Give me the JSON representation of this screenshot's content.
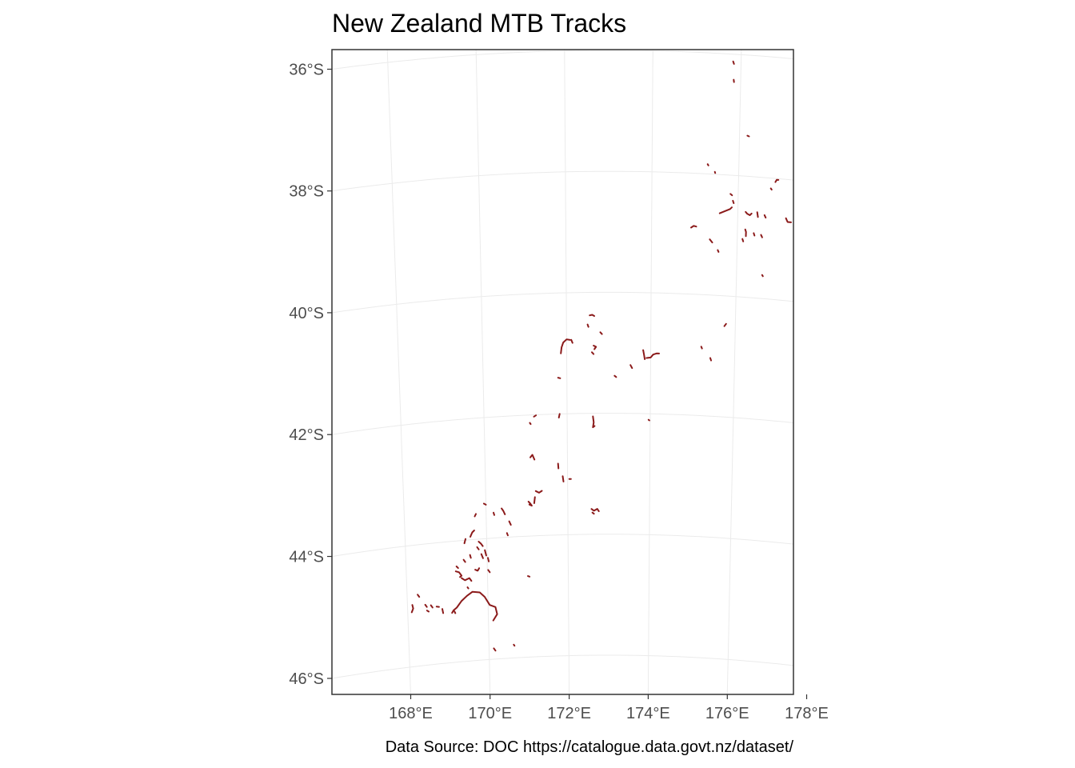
{
  "title": "New Zealand MTB Tracks",
  "caption": "Data Source: DOC https://catalogue.data.govt.nz/dataset/",
  "colors": {
    "track": "#8b1a1a",
    "grid": "#ebebeb",
    "panel_border": "#333333",
    "tick_text": "#4d4d4d"
  },
  "chart_data": {
    "type": "map",
    "projection": "lambert-conformal (graticule slightly curved)",
    "grid": true,
    "lon_range": [
      167.6,
      178.6
    ],
    "lat_range": [
      -46.3,
      -35.6
    ],
    "lon_ticks": [
      168,
      170,
      172,
      174,
      176,
      178
    ],
    "lat_ticks": [
      -36,
      -38,
      -40,
      -42,
      -44,
      -46
    ],
    "lon_tick_labels": [
      "168°E",
      "170°E",
      "172°E",
      "174°E",
      "176°E",
      "178°E"
    ],
    "lat_tick_labels": [
      "36°S",
      "38°S",
      "40°S",
      "42°S",
      "44°S",
      "46°S"
    ],
    "tracks": [
      [
        [
          175.82,
          -36.12
        ],
        [
          175.84,
          -36.16
        ]
      ],
      [
        [
          175.84,
          -36.42
        ],
        [
          175.85,
          -36.46
        ]
      ],
      [
        [
          176.18,
          -37.33
        ],
        [
          176.22,
          -37.34
        ]
      ],
      [
        [
          175.28,
          -37.84
        ],
        [
          175.3,
          -37.86
        ]
      ],
      [
        [
          175.45,
          -37.96
        ],
        [
          175.46,
          -37.98
        ]
      ],
      [
        [
          176.85,
          -38.06
        ],
        [
          176.88,
          -38.02
        ],
        [
          176.92,
          -38.02
        ]
      ],
      [
        [
          176.75,
          -38.17
        ],
        [
          176.77,
          -38.19
        ]
      ],
      [
        [
          177.98,
          -38.13
        ],
        [
          178.02,
          -38.15
        ],
        [
          178.06,
          -38.17
        ]
      ],
      [
        [
          175.82,
          -38.31
        ],
        [
          175.86,
          -38.33
        ]
      ],
      [
        [
          175.88,
          -38.42
        ],
        [
          175.9,
          -38.46
        ]
      ],
      [
        [
          175.58,
          -38.64
        ],
        [
          175.7,
          -38.6
        ],
        [
          175.82,
          -38.56
        ],
        [
          175.86,
          -38.53
        ]
      ],
      [
        [
          176.18,
          -38.59
        ],
        [
          176.22,
          -38.62
        ],
        [
          176.28,
          -38.64
        ],
        [
          176.32,
          -38.61
        ]
      ],
      [
        [
          176.45,
          -38.58
        ],
        [
          176.47,
          -38.66
        ]
      ],
      [
        [
          176.62,
          -38.62
        ],
        [
          176.65,
          -38.66
        ]
      ],
      [
        [
          177.12,
          -38.64
        ],
        [
          177.16,
          -38.7
        ],
        [
          177.24,
          -38.7
        ]
      ],
      [
        [
          174.92,
          -38.9
        ],
        [
          174.98,
          -38.87
        ],
        [
          175.04,
          -38.88
        ]
      ],
      [
        [
          176.18,
          -38.88
        ],
        [
          176.2,
          -38.92
        ],
        [
          176.2,
          -38.99
        ]
      ],
      [
        [
          176.38,
          -38.93
        ],
        [
          176.4,
          -38.97
        ]
      ],
      [
        [
          176.55,
          -38.95
        ],
        [
          176.58,
          -38.99
        ]
      ],
      [
        [
          176.12,
          -39.04
        ],
        [
          176.14,
          -39.08
        ]
      ],
      [
        [
          175.36,
          -39.08
        ],
        [
          175.42,
          -39.13
        ]
      ],
      [
        [
          175.55,
          -39.25
        ],
        [
          175.57,
          -39.28
        ]
      ],
      [
        [
          176.6,
          -39.61
        ],
        [
          176.62,
          -39.63
        ]
      ],
      [
        [
          175.74,
          -40.5
        ],
        [
          175.78,
          -40.46
        ]
      ],
      [
        [
          172.55,
          -40.38
        ],
        [
          172.61,
          -40.37
        ],
        [
          172.66,
          -40.39
        ]
      ],
      [
        [
          172.5,
          -40.53
        ],
        [
          172.52,
          -40.57
        ]
      ],
      [
        [
          172.8,
          -40.66
        ],
        [
          172.84,
          -40.69
        ]
      ],
      [
        [
          172.08,
          -40.78
        ],
        [
          172.0,
          -40.77
        ],
        [
          171.92,
          -40.82
        ],
        [
          171.88,
          -40.9
        ],
        [
          171.86,
          -41.0
        ]
      ],
      [
        [
          172.11,
          -40.78
        ],
        [
          172.14,
          -40.83
        ]
      ],
      [
        [
          172.64,
          -40.88
        ],
        [
          172.7,
          -40.9
        ],
        [
          172.66,
          -40.94
        ]
      ],
      [
        [
          172.6,
          -40.99
        ],
        [
          172.64,
          -41.02
        ]
      ],
      [
        [
          173.82,
          -40.95
        ],
        [
          173.84,
          -41.02
        ],
        [
          173.86,
          -41.1
        ]
      ],
      [
        [
          173.9,
          -41.08
        ],
        [
          174.0,
          -41.07
        ],
        [
          174.06,
          -41.02
        ],
        [
          174.14,
          -41.0
        ],
        [
          174.2,
          -41.0
        ]
      ],
      [
        [
          175.2,
          -40.86
        ],
        [
          175.22,
          -40.89
        ]
      ],
      [
        [
          175.42,
          -41.04
        ],
        [
          175.44,
          -41.08
        ]
      ],
      [
        [
          173.52,
          -41.2
        ],
        [
          173.56,
          -41.25
        ]
      ],
      [
        [
          173.14,
          -41.38
        ],
        [
          173.18,
          -41.4
        ]
      ],
      [
        [
          171.79,
          -41.4
        ],
        [
          171.84,
          -41.41
        ]
      ],
      [
        [
          171.82,
          -42.0
        ],
        [
          171.8,
          -42.06
        ]
      ],
      [
        [
          171.2,
          -42.03
        ],
        [
          171.25,
          -42.01
        ]
      ],
      [
        [
          171.1,
          -42.13
        ],
        [
          171.12,
          -42.15
        ]
      ],
      [
        [
          172.62,
          -42.05
        ],
        [
          172.64,
          -42.15
        ],
        [
          172.62,
          -42.23
        ],
        [
          172.66,
          -42.21
        ]
      ],
      [
        [
          173.96,
          -42.1
        ],
        [
          173.98,
          -42.11
        ]
      ],
      [
        [
          171.1,
          -42.7
        ],
        [
          171.15,
          -42.66
        ],
        [
          171.2,
          -42.74
        ]
      ],
      [
        [
          171.77,
          -42.82
        ],
        [
          171.78,
          -42.9
        ]
      ],
      [
        [
          171.88,
          -43.03
        ],
        [
          171.9,
          -43.12
        ]
      ],
      [
        [
          172.04,
          -43.08
        ],
        [
          172.08,
          -43.08
        ]
      ],
      [
        [
          171.22,
          -43.26
        ],
        [
          171.3,
          -43.29
        ],
        [
          171.37,
          -43.26
        ]
      ],
      [
        [
          171.2,
          -43.36
        ],
        [
          171.18,
          -43.46
        ]
      ],
      [
        [
          171.04,
          -43.43
        ],
        [
          171.08,
          -43.46
        ],
        [
          171.12,
          -43.5
        ],
        [
          171.06,
          -43.48
        ]
      ],
      [
        [
          172.58,
          -43.58
        ],
        [
          172.64,
          -43.61
        ],
        [
          172.72,
          -43.58
        ],
        [
          172.76,
          -43.62
        ]
      ],
      [
        [
          172.6,
          -43.64
        ],
        [
          172.64,
          -43.66
        ]
      ],
      [
        [
          169.95,
          -43.42
        ],
        [
          170.0,
          -43.44
        ]
      ],
      [
        [
          169.72,
          -43.62
        ],
        [
          169.75,
          -43.58
        ]
      ],
      [
        [
          170.18,
          -43.58
        ],
        [
          170.2,
          -43.62
        ]
      ],
      [
        [
          170.38,
          -43.52
        ],
        [
          170.42,
          -43.56
        ],
        [
          170.46,
          -43.62
        ]
      ],
      [
        [
          170.56,
          -43.74
        ],
        [
          170.6,
          -43.8
        ]
      ],
      [
        [
          170.5,
          -43.93
        ],
        [
          170.52,
          -43.97
        ]
      ],
      [
        [
          169.6,
          -43.95
        ],
        [
          169.65,
          -43.88
        ],
        [
          169.7,
          -43.85
        ]
      ],
      [
        [
          169.45,
          -44.05
        ],
        [
          169.48,
          -43.98
        ]
      ],
      [
        [
          169.8,
          -44.04
        ],
        [
          169.86,
          -44.08
        ],
        [
          169.9,
          -44.12
        ]
      ],
      [
        [
          169.76,
          -44.13
        ],
        [
          169.8,
          -44.17
        ]
      ],
      [
        [
          169.86,
          -44.25
        ],
        [
          169.9,
          -44.32
        ]
      ],
      [
        [
          169.95,
          -44.19
        ],
        [
          169.98,
          -44.28
        ]
      ],
      [
        [
          170.02,
          -44.32
        ],
        [
          170.04,
          -44.38
        ]
      ],
      [
        [
          169.58,
          -44.25
        ],
        [
          169.6,
          -44.3
        ]
      ],
      [
        [
          169.42,
          -44.32
        ],
        [
          169.46,
          -44.36
        ]
      ],
      [
        [
          169.24,
          -44.42
        ],
        [
          169.28,
          -44.45
        ]
      ],
      [
        [
          169.22,
          -44.5
        ],
        [
          169.3,
          -44.52
        ],
        [
          169.36,
          -44.58
        ],
        [
          169.32,
          -44.6
        ]
      ],
      [
        [
          169.7,
          -44.5
        ],
        [
          169.76,
          -44.52
        ],
        [
          169.8,
          -44.48
        ]
      ],
      [
        [
          170.02,
          -44.52
        ],
        [
          170.06,
          -44.56
        ]
      ],
      [
        [
          169.36,
          -44.62
        ],
        [
          169.44,
          -44.66
        ],
        [
          169.55,
          -44.63
        ],
        [
          169.6,
          -44.68
        ]
      ],
      [
        [
          169.5,
          -44.78
        ],
        [
          169.52,
          -44.8
        ]
      ],
      [
        [
          171.0,
          -44.66
        ],
        [
          171.04,
          -44.67
        ]
      ],
      [
        [
          168.26,
          -44.82
        ],
        [
          168.3,
          -44.86
        ]
      ],
      [
        [
          168.12,
          -44.98
        ],
        [
          168.14,
          -45.04
        ],
        [
          168.1,
          -45.1
        ]
      ],
      [
        [
          168.44,
          -45.0
        ],
        [
          168.48,
          -45.04
        ]
      ],
      [
        [
          168.58,
          -45.02
        ],
        [
          168.62,
          -45.06
        ]
      ],
      [
        [
          168.72,
          -45.05
        ],
        [
          168.78,
          -45.06
        ]
      ],
      [
        [
          168.48,
          -45.1
        ],
        [
          168.52,
          -45.12
        ]
      ],
      [
        [
          168.86,
          -45.1
        ],
        [
          168.88,
          -45.17
        ]
      ],
      [
        [
          169.1,
          -45.18
        ],
        [
          169.14,
          -45.14
        ],
        [
          169.22,
          -45.1
        ],
        [
          169.34,
          -45.0
        ],
        [
          169.48,
          -44.92
        ],
        [
          169.62,
          -44.86
        ],
        [
          169.8,
          -44.88
        ],
        [
          169.92,
          -44.96
        ],
        [
          170.04,
          -45.1
        ],
        [
          170.18,
          -45.14
        ],
        [
          170.22,
          -45.26
        ],
        [
          170.12,
          -45.36
        ]
      ],
      [
        [
          169.16,
          -45.16
        ],
        [
          169.18,
          -45.19
        ]
      ],
      [
        [
          170.12,
          -45.82
        ],
        [
          170.16,
          -45.86
        ]
      ],
      [
        [
          170.62,
          -45.78
        ],
        [
          170.64,
          -45.8
        ]
      ]
    ]
  }
}
